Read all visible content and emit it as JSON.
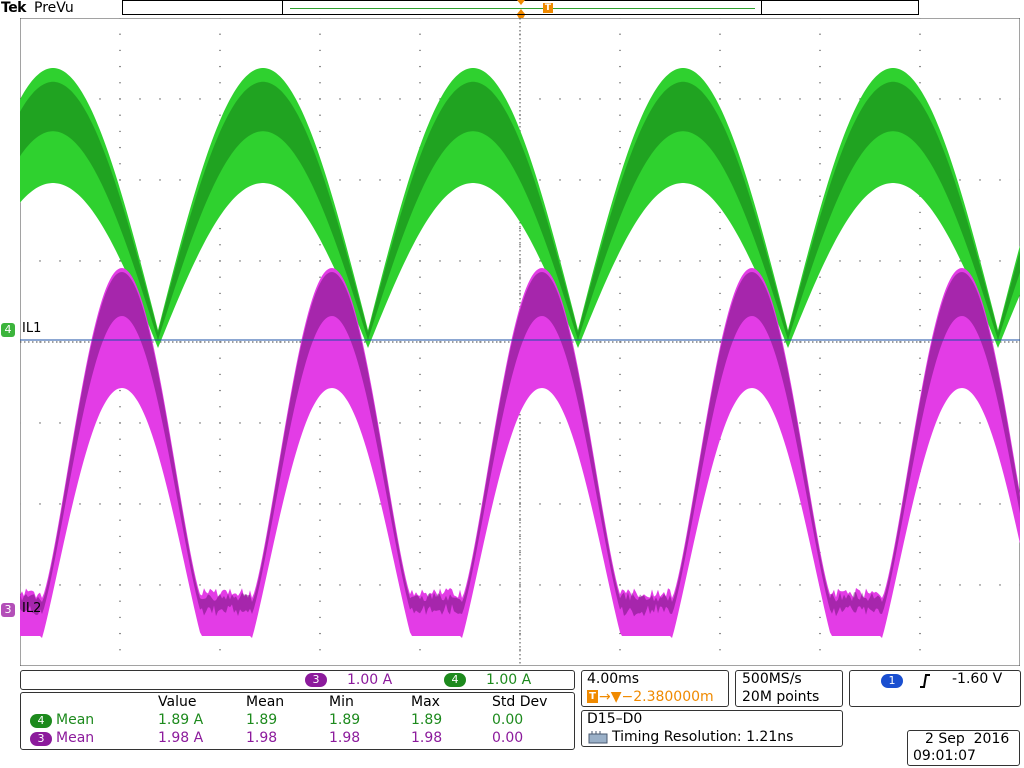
{
  "header": {
    "brand": "Tek",
    "mode": "PreVu"
  },
  "channels": {
    "ch4": {
      "num": "4",
      "label": "IL1",
      "scale": "1.00 A",
      "color": "#2fd12f",
      "dark": "#0f6a12"
    },
    "ch3": {
      "num": "3",
      "label": "IL2",
      "scale": "1.00 A",
      "color": "#e33ce6",
      "dark": "#5b0a66"
    }
  },
  "trigger": {
    "marker": "T",
    "channel": "1",
    "level": "-1.60 V",
    "slope_icon": "rising-edge-icon"
  },
  "timebase": {
    "scale": "4.00ms",
    "position": "→▼−2.380000m",
    "sample_rate": "500MS/s",
    "record_length": "20M points"
  },
  "digital": {
    "channels": "D15–D0",
    "timing": "Timing Resolution: 1.21ns",
    "icon": "digital-probe-icon"
  },
  "measurements": {
    "headers": [
      "Value",
      "Mean",
      "Min",
      "Max",
      "Std Dev"
    ],
    "rows": [
      {
        "ch": "4",
        "label": "Mean",
        "value": "1.89 A",
        "mean": "1.89",
        "min": "1.89",
        "max": "1.89",
        "std": "0.00"
      },
      {
        "ch": "3",
        "label": "Mean",
        "value": "1.98 A",
        "mean": "1.98",
        "min": "1.98",
        "max": "1.98",
        "std": "0.00"
      }
    ]
  },
  "datetime": {
    "date": "2 Sep  2016",
    "time": "09:01:07"
  }
}
